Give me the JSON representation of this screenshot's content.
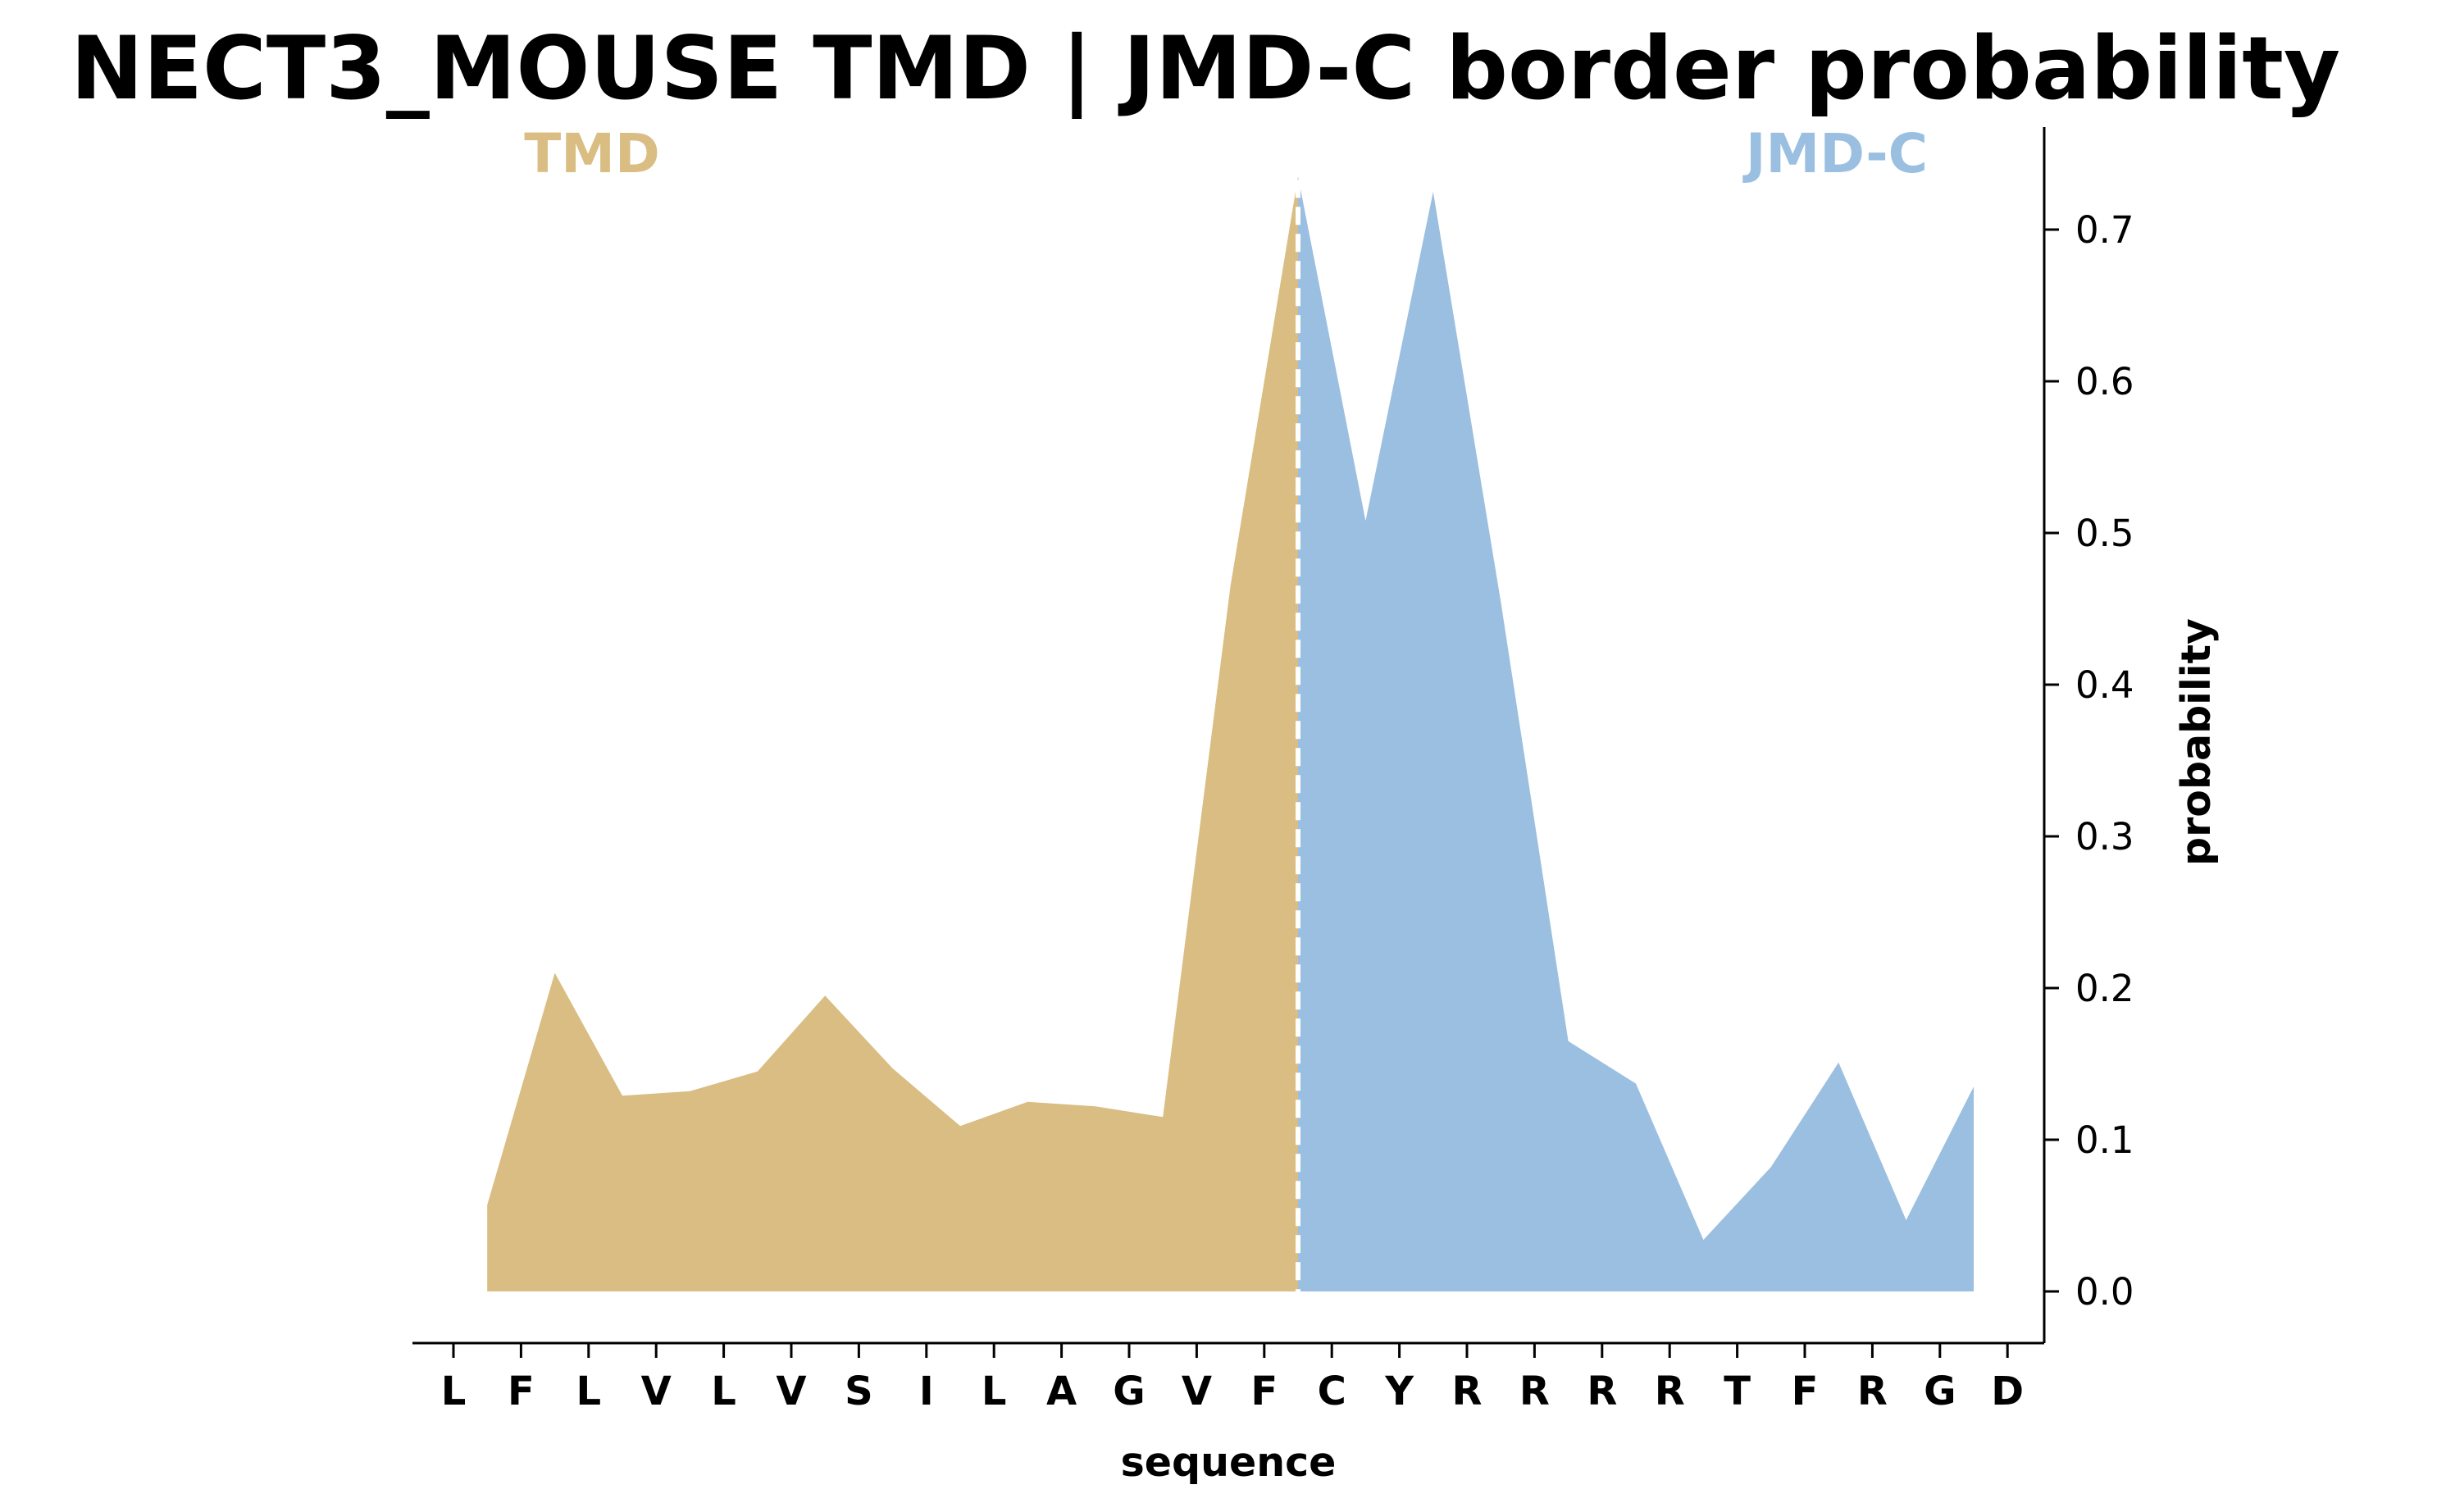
{
  "chart_data": {
    "type": "area",
    "title": "NECT3_MOUSE TMD | JMD-C border probability",
    "xlabel": "sequence",
    "ylabel": "probability",
    "categories": [
      "L",
      "F",
      "L",
      "V",
      "L",
      "V",
      "S",
      "I",
      "L",
      "A",
      "G",
      "V",
      "F",
      "C",
      "Y",
      "R",
      "R",
      "R",
      "R",
      "T",
      "F",
      "R",
      "G",
      "D"
    ],
    "ylim": [
      -0.035,
      0.77
    ],
    "yticks": [
      0.0,
      0.1,
      0.2,
      0.3,
      0.4,
      0.5,
      0.6,
      0.7
    ],
    "y_axis_side": "right",
    "grid": false,
    "border_position": 12.5,
    "series": [
      {
        "name": "TMD",
        "color": "#d9bd82",
        "x": [
          0.5,
          1.5,
          2.5,
          3.5,
          4.5,
          5.5,
          6.5,
          7.5,
          8.5,
          9.5,
          10.5,
          11.5,
          12.5
        ],
        "values": [
          0.057,
          0.21,
          0.129,
          0.132,
          0.145,
          0.195,
          0.147,
          0.109,
          0.125,
          0.122,
          0.115,
          0.465,
          0.735
        ]
      },
      {
        "name": "JMD-C",
        "color": "#9bbfe0",
        "x": [
          12.5,
          13.5,
          14.5,
          15.5,
          16.5,
          17.5,
          18.5,
          19.5,
          20.5,
          21.5,
          22.5
        ],
        "values": [
          0.735,
          0.508,
          0.725,
          0.455,
          0.165,
          0.137,
          0.034,
          0.082,
          0.151,
          0.047,
          0.135
        ]
      }
    ]
  }
}
